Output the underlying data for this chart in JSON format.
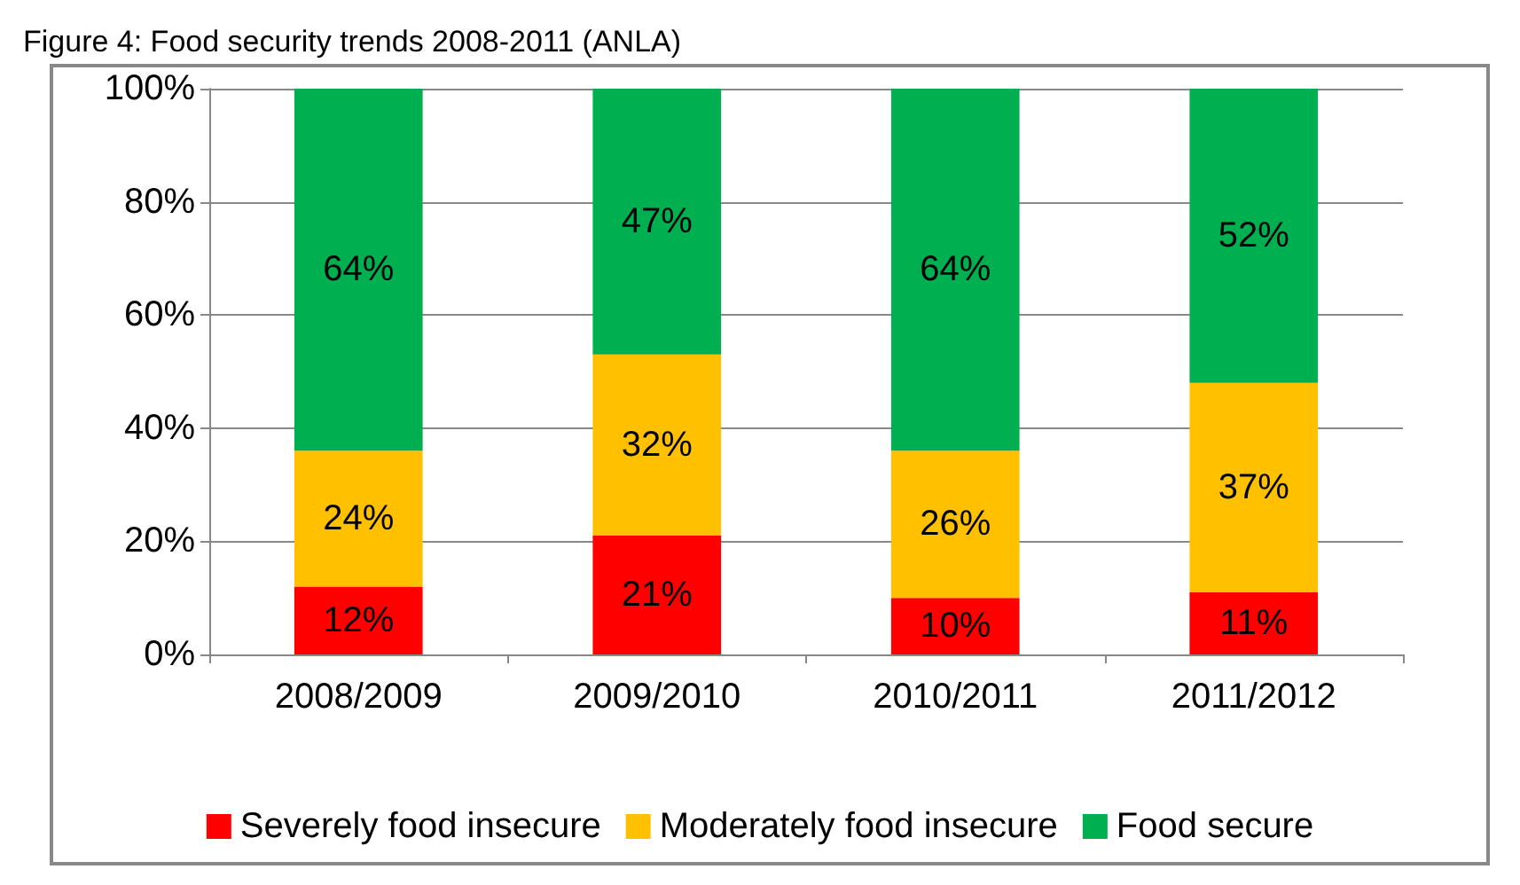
{
  "chart_data": {
    "type": "bar",
    "title": "Figure 4: Food security trends 2008-2011 (ANLA)",
    "categories": [
      "2008/2009",
      "2009/2010",
      "2010/2011",
      "2011/2012"
    ],
    "stacked": true,
    "series": [
      {
        "name": "Severely food insecure",
        "color": "#ff0000",
        "values": [
          12,
          21,
          10,
          11
        ],
        "value_labels": [
          "12%",
          "21%",
          "10%",
          "11%"
        ]
      },
      {
        "name": "Moderately food insecure",
        "color": "#ffc000",
        "values": [
          24,
          32,
          26,
          37
        ],
        "value_labels": [
          "24%",
          "32%",
          "26%",
          "37%"
        ]
      },
      {
        "name": "Food secure",
        "color": "#00b050",
        "values": [
          64,
          47,
          64,
          52
        ],
        "value_labels": [
          "64%",
          "47%",
          "64%",
          "52%"
        ]
      }
    ],
    "ylim": [
      0,
      100
    ],
    "yticks": [
      {
        "value": 0,
        "label": "0%"
      },
      {
        "value": 20,
        "label": "20%"
      },
      {
        "value": 40,
        "label": "40%"
      },
      {
        "value": 60,
        "label": "60%"
      },
      {
        "value": 80,
        "label": "80%"
      },
      {
        "value": 100,
        "label": "100%"
      }
    ],
    "grid": "y",
    "legend": "bottom"
  }
}
